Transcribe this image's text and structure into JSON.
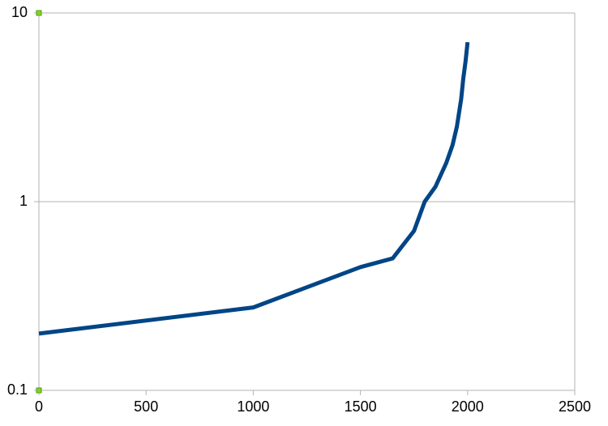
{
  "chart_data": {
    "type": "line",
    "title": "",
    "xlabel": "",
    "ylabel": "",
    "x_scale": "linear",
    "y_scale": "log",
    "xlim": [
      0,
      2500
    ],
    "ylim": [
      0.1,
      10
    ],
    "x_ticks": [
      0,
      500,
      1000,
      1500,
      2000,
      2500
    ],
    "x_tick_labels": [
      "0",
      "500",
      "1000",
      "1500",
      "2000",
      "2500"
    ],
    "y_ticks": [
      0.1,
      1,
      10
    ],
    "y_tick_labels": [
      "0.1",
      "1",
      "10"
    ],
    "grid": {
      "horizontal": true,
      "vertical": false
    },
    "legend": "none",
    "colors": {
      "line": "#004586",
      "grid": "#b3b3b3",
      "axis": "#b3b3b3",
      "marker_fill": "#81d41a",
      "marker_stroke": "#579d1c"
    },
    "series": [
      {
        "x": [
          0,
          1000,
          1500,
          1650,
          1750,
          1800,
          1850,
          1900,
          1930,
          1950,
          1970,
          1980,
          1990,
          2000
        ],
        "y": [
          0.2,
          0.275,
          0.45,
          0.5,
          0.7,
          1.0,
          1.2,
          1.6,
          2.0,
          2.5,
          3.5,
          4.5,
          5.5,
          7.0
        ]
      }
    ]
  }
}
